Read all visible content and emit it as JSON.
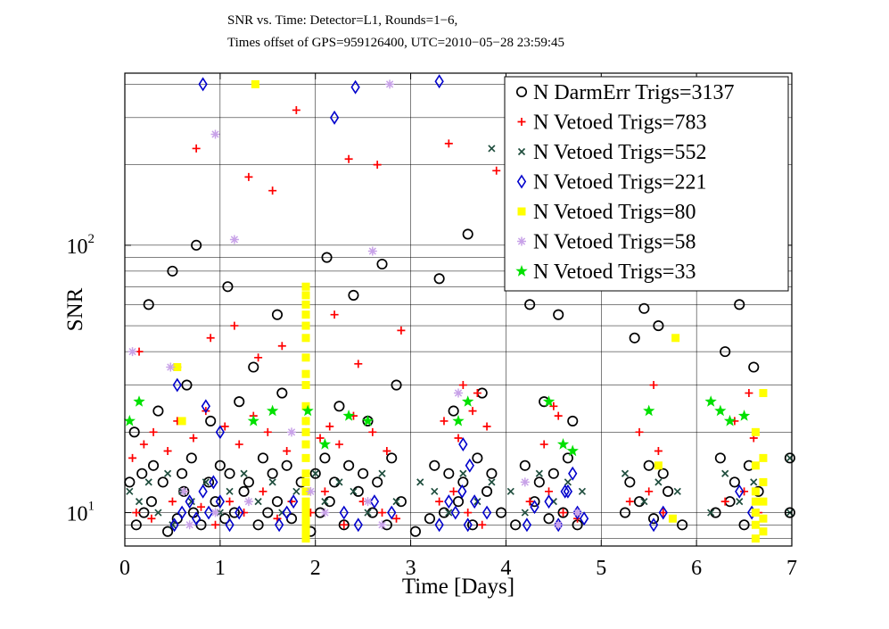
{
  "chart_data": {
    "type": "scatter",
    "title": "SNR vs. Time: Detector=L1, Rounds=1−6,",
    "subtitle": "Times offset of GPS=959126400, UTC=2010−05−28 23:59:45",
    "xlabel": "Time [Days]",
    "ylabel": "SNR",
    "xlim": [
      0,
      7
    ],
    "ylim": [
      7.5,
      440
    ],
    "yscale": "log",
    "x_ticks": [
      "0",
      "1",
      "2",
      "3",
      "4",
      "5",
      "6",
      "7"
    ],
    "y_tick_labels": [
      {
        "base": "10",
        "exp": "1",
        "value": 10
      },
      {
        "base": "10",
        "exp": "2",
        "value": 100
      }
    ],
    "grid": true,
    "legend_position": "top-right",
    "series": [
      {
        "name": "N DarmErr Trigs=3137",
        "marker": "circle",
        "color": "#000000",
        "x": [
          0.12,
          0.2,
          0.28,
          0.45,
          0.55,
          0.62,
          0.72,
          0.8,
          0.95,
          1.05,
          1.15,
          1.25,
          1.4,
          1.5,
          1.6,
          1.75,
          1.95,
          2.05,
          2.15,
          2.3,
          2.45,
          2.6,
          2.75,
          2.9,
          3.05,
          3.2,
          3.35,
          3.5,
          3.65,
          3.8,
          3.95,
          4.1,
          4.3,
          4.45,
          4.6,
          4.75,
          5.25,
          5.4,
          5.55,
          5.7,
          5.85,
          6.2,
          6.35,
          6.5,
          6.65,
          6.98,
          0.05,
          0.18,
          0.3,
          0.4,
          0.6,
          0.7,
          0.88,
          1.0,
          1.1,
          1.3,
          1.45,
          1.55,
          1.7,
          1.85,
          2.0,
          2.1,
          2.2,
          2.35,
          2.5,
          2.65,
          2.8,
          3.25,
          3.4,
          3.55,
          3.7,
          3.85,
          4.2,
          4.35,
          4.5,
          4.65,
          5.3,
          5.5,
          5.65,
          6.25,
          6.4,
          6.55,
          0.1,
          0.35,
          0.65,
          0.9,
          1.2,
          1.35,
          1.65,
          2.25,
          2.55,
          2.85,
          3.45,
          3.75,
          4.4,
          4.7,
          5.35,
          5.6,
          6.3,
          6.6,
          0.25,
          0.5,
          0.75,
          1.08,
          1.6,
          2.12,
          2.4,
          2.7,
          3.3,
          3.6,
          4.25,
          4.55,
          5.45,
          6.45,
          6.98
        ],
        "y": [
          9,
          10,
          11,
          8.5,
          9.5,
          12,
          10,
          9,
          11,
          9.5,
          10,
          12,
          9,
          10,
          11,
          9.5,
          8.5,
          10,
          11,
          9,
          12,
          10,
          9,
          11,
          8.5,
          9.5,
          10,
          11,
          9,
          12,
          10,
          9,
          11,
          9.5,
          10,
          9,
          10,
          11,
          9.5,
          12,
          9,
          10,
          11,
          9,
          12,
          10,
          13,
          14,
          15,
          13,
          14,
          16,
          13,
          15,
          14,
          13,
          16,
          14,
          15,
          13,
          14,
          16,
          13,
          15,
          14,
          13,
          16,
          15,
          14,
          13,
          16,
          14,
          15,
          13,
          14,
          16,
          13,
          15,
          14,
          16,
          13,
          15,
          20,
          24,
          30,
          22,
          26,
          35,
          28,
          25,
          22,
          30,
          24,
          28,
          26,
          22,
          45,
          50,
          40,
          35,
          60,
          80,
          100,
          70,
          55,
          90,
          65,
          85,
          75,
          110,
          60,
          55,
          58,
          60,
          16
        ]
      },
      {
        "name": "N Vetoed Trigs=783",
        "marker": "plus",
        "color": "#ff0000",
        "x": [
          0.12,
          0.28,
          0.5,
          0.62,
          0.8,
          0.95,
          1.1,
          1.25,
          1.45,
          1.6,
          1.75,
          1.95,
          2.1,
          2.3,
          2.5,
          2.7,
          2.85,
          3.3,
          3.45,
          3.6,
          3.75,
          4.25,
          4.45,
          4.6,
          4.75,
          5.3,
          5.5,
          5.65,
          6.3,
          6.5,
          6.65,
          0.08,
          0.2,
          0.3,
          0.45,
          0.55,
          0.72,
          0.85,
          1.05,
          1.2,
          1.35,
          1.5,
          1.7,
          1.9,
          2.05,
          2.15,
          2.25,
          2.4,
          2.6,
          2.75,
          3.35,
          3.5,
          3.65,
          3.8,
          4.4,
          4.55,
          5.4,
          5.6,
          6.4,
          6.6,
          0.15,
          0.55,
          0.9,
          1.15,
          1.4,
          1.65,
          2.2,
          2.45,
          2.9,
          3.55,
          3.7,
          4.5,
          5.55,
          6.55,
          0.75,
          1.3,
          1.55,
          1.8,
          2.35,
          2.65,
          3.4,
          3.9,
          4.35,
          5.35,
          6.35
        ],
        "y": [
          10,
          9.5,
          11,
          12,
          10.5,
          9,
          11,
          10,
          12,
          9.5,
          11,
          10,
          12,
          9,
          11,
          10,
          9.5,
          11,
          12,
          10,
          9,
          11,
          12,
          10,
          9.5,
          11,
          12,
          10,
          11,
          12,
          10,
          16,
          18,
          20,
          17,
          22,
          19,
          24,
          21,
          18,
          23,
          20,
          17,
          22,
          19,
          21,
          18,
          23,
          20,
          17,
          22,
          19,
          24,
          21,
          18,
          23,
          20,
          17,
          22,
          19,
          40,
          35,
          45,
          50,
          38,
          42,
          55,
          36,
          48,
          30,
          28,
          25,
          30,
          28,
          230,
          180,
          160,
          320,
          210,
          200,
          240,
          190,
          150,
          140,
          130
        ]
      },
      {
        "name": "N Vetoed Trigs=552",
        "marker": "x",
        "color": "#1f4d3d",
        "x": [
          0.05,
          0.15,
          0.25,
          0.35,
          0.45,
          0.6,
          0.7,
          0.85,
          1.0,
          1.1,
          1.25,
          1.4,
          1.55,
          1.65,
          1.8,
          2.0,
          2.1,
          2.25,
          2.4,
          2.55,
          2.7,
          2.85,
          3.1,
          3.25,
          3.4,
          3.55,
          3.7,
          3.85,
          4.05,
          4.2,
          4.35,
          4.5,
          4.65,
          4.8,
          5.25,
          5.45,
          5.6,
          5.8,
          6.15,
          6.3,
          6.45,
          6.6,
          6.98,
          6.98,
          3.85,
          0.5
        ],
        "y": [
          12,
          11,
          13,
          10,
          14,
          12,
          11,
          13,
          10,
          12,
          14,
          11,
          13,
          10,
          12,
          14,
          11,
          13,
          12,
          10,
          14,
          11,
          13,
          12,
          10,
          14,
          11,
          13,
          12,
          10,
          14,
          11,
          13,
          12,
          14,
          11,
          13,
          12,
          10,
          14,
          11,
          13,
          10,
          16,
          230,
          9
        ]
      },
      {
        "name": "N Vetoed Trigs=221",
        "marker": "diamond",
        "color": "#0000cc",
        "x": [
          0.52,
          0.6,
          0.68,
          0.75,
          0.82,
          0.88,
          0.93,
          1.0,
          1.1,
          1.2,
          1.62,
          1.7,
          1.77,
          2.3,
          2.45,
          2.62,
          2.8,
          3.3,
          3.4,
          3.47,
          3.54,
          3.6,
          3.67,
          3.8,
          4.22,
          4.3,
          4.45,
          4.55,
          4.65,
          4.75,
          4.82,
          5.55,
          5.65,
          6.45,
          6.58,
          0.82,
          2.2,
          2.42,
          3.3,
          0.55,
          0.85,
          1.0,
          3.55,
          3.62,
          4.62,
          4.7
        ],
        "y": [
          9,
          10,
          11,
          9.5,
          12,
          10,
          13,
          11,
          9,
          10,
          9,
          10,
          11,
          10,
          9,
          11,
          10,
          9,
          11,
          10,
          12,
          9,
          11,
          10,
          9,
          10.5,
          11,
          9,
          12,
          10,
          9.5,
          9,
          10,
          12,
          10,
          400,
          300,
          390,
          410,
          30,
          25,
          20,
          18,
          15,
          12,
          14
        ]
      },
      {
        "name": "N Vetoed Trigs=80",
        "marker": "square",
        "color": "#ffff00",
        "x": [
          1.9,
          1.9,
          1.9,
          1.9,
          1.9,
          1.9,
          1.9,
          1.9,
          1.9,
          1.9,
          1.9,
          1.9,
          1.9,
          1.9,
          1.9,
          1.9,
          1.9,
          1.9,
          1.9,
          1.9,
          1.9,
          1.9,
          1.9,
          1.9,
          0.55,
          0.6,
          1.37,
          5.6,
          5.78,
          6.62,
          6.62,
          6.62,
          6.62,
          6.62,
          6.62,
          6.62,
          6.7,
          6.7,
          6.7,
          6.7,
          6.7,
          6.7,
          5.75
        ],
        "y": [
          8,
          8.5,
          9,
          9.5,
          10,
          10.5,
          11,
          12,
          13,
          14,
          16,
          18,
          20,
          22,
          25,
          30,
          33,
          38,
          45,
          50,
          55,
          60,
          65,
          70,
          35,
          22,
          400,
          15,
          45,
          8,
          9,
          10,
          11,
          12,
          15,
          20,
          8.5,
          9.5,
          11,
          13,
          16,
          28,
          9.5
        ]
      },
      {
        "name": "N Vetoed Trigs=58",
        "marker": "asterisk",
        "color": "#c8a2e8",
        "x": [
          0.08,
          0.68,
          0.95,
          1.3,
          1.95,
          2.1,
          2.55,
          2.7,
          2.78,
          3.5,
          4.2,
          4.55,
          4.75,
          1.75,
          0.48,
          0.62,
          0.95,
          1.15,
          2.6
        ],
        "y": [
          40,
          9,
          10,
          11,
          12,
          10,
          11,
          9,
          400,
          28,
          13,
          9,
          10,
          20,
          35,
          12,
          260,
          105,
          95
        ]
      },
      {
        "name": "N Vetoed Trigs=33",
        "marker": "star",
        "color": "#00e000",
        "x": [
          0.05,
          0.15,
          1.35,
          1.55,
          1.92,
          2.1,
          2.35,
          2.55,
          3.6,
          4.45,
          4.6,
          5.5,
          6.15,
          6.25,
          6.35,
          6.5,
          3.5,
          4.7
        ],
        "y": [
          22,
          26,
          22,
          24,
          24,
          18,
          23,
          22,
          26,
          26,
          18,
          24,
          26,
          24,
          22,
          23,
          22,
          17
        ]
      }
    ]
  }
}
